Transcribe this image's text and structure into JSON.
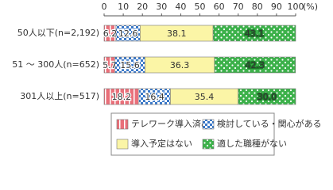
{
  "chart_data": {
    "type": "stacked-barh",
    "xlabel": "(%)",
    "categories": [
      "50人以下(n=2,192)",
      "51 ～ 300人(n=652)",
      "301人以上(n=517)"
    ],
    "series": [
      {
        "name": "テレワーク導入済み",
        "color": "#e9707a",
        "pattern": "stripes",
        "values": [
          6.2,
          5.7,
          18.2
        ],
        "value_labels": [
          "6.2",
          "5.7",
          "18.2"
        ]
      },
      {
        "name": "検討している・関心がある",
        "color": "#3a78c8",
        "pattern": "checks",
        "values": [
          12.6,
          15.6,
          16.4
        ],
        "value_labels": [
          "12.6",
          "15.6",
          "16.4"
        ]
      },
      {
        "name": "導入予定はない",
        "color": "#fbf5a6",
        "pattern": "solid",
        "values": [
          38.1,
          36.3,
          35.4
        ],
        "value_labels": [
          "38.1",
          "36.3",
          "35.4"
        ]
      },
      {
        "name": "適した職種がない",
        "color": "#3cb14a",
        "pattern": "dots",
        "values": [
          43.1,
          42.3,
          30.0
        ],
        "value_labels": [
          "43.1",
          "42.3",
          "30.0"
        ]
      }
    ],
    "xlim": [
      0,
      100
    ],
    "xticks": [
      0,
      10,
      20,
      30,
      40,
      50,
      60,
      70,
      80,
      90,
      100
    ],
    "grid": false
  }
}
